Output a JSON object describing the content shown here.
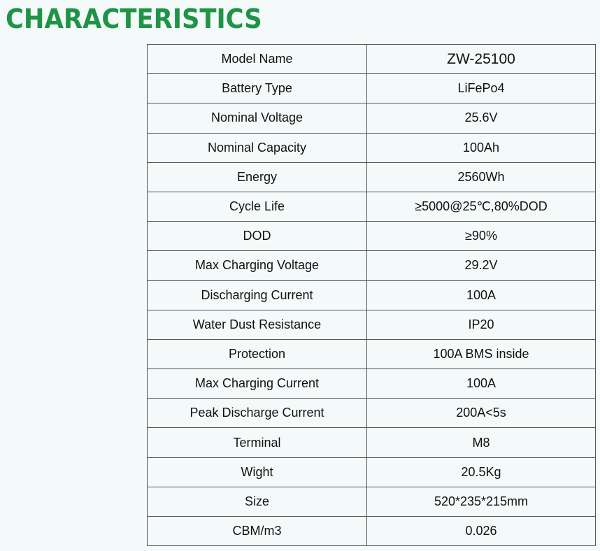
{
  "title": "CHARACTERISTICS",
  "rows": [
    {
      "label": "Model Name",
      "value": "ZW-25100"
    },
    {
      "label": "Battery Type",
      "value": "LiFePo4"
    },
    {
      "label": "Nominal Voltage",
      "value": "25.6V"
    },
    {
      "label": "Nominal Capacity",
      "value": "100Ah"
    },
    {
      "label": "Energy",
      "value": "2560Wh"
    },
    {
      "label": "Cycle Life",
      "value": "≥5000@25℃,80%DOD"
    },
    {
      "label": "DOD",
      "value": "≥90%"
    },
    {
      "label": "Max Charging Voltage",
      "value": "29.2V"
    },
    {
      "label": "Discharging Current",
      "value": "100A"
    },
    {
      "label": "Water Dust Resistance",
      "value": "IP20"
    },
    {
      "label": "Protection",
      "value": "100A BMS inside"
    },
    {
      "label": "Max Charging Current",
      "value": "100A"
    },
    {
      "label": "Peak Discharge Current",
      "value": "200A<5s"
    },
    {
      "label": "Terminal",
      "value": "M8"
    },
    {
      "label": "Wight",
      "value": "20.5Kg"
    },
    {
      "label": "Size",
      "value": "520*235*215mm"
    },
    {
      "label": "CBM/m3",
      "value": "0.026"
    }
  ],
  "colors": {
    "title": "#1f9446",
    "background": "#f4f9f9"
  }
}
